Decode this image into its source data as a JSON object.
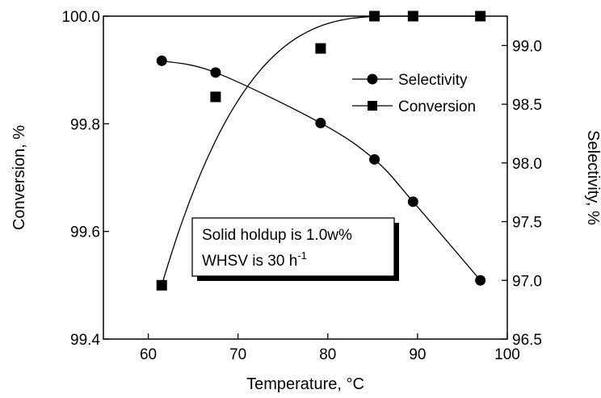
{
  "chart_data": {
    "type": "line",
    "xlabel": "Temperature, °C",
    "ylabel_left": "Conversion, %",
    "ylabel_right": "Selectivity, %",
    "xlim": [
      55,
      100
    ],
    "ylim_left": [
      99.4,
      100.0
    ],
    "ylim_right": [
      96.5,
      99.25
    ],
    "x_ticks": [
      60,
      70,
      80,
      90,
      100
    ],
    "y_ticks_left": [
      99.4,
      99.6,
      99.8,
      100.0
    ],
    "y_tick_labels_left": [
      "99.4",
      "99.6",
      "99.8",
      "100.0"
    ],
    "y_ticks_right": [
      96.5,
      97.0,
      97.5,
      98.0,
      98.5,
      99.0
    ],
    "y_tick_labels_right": [
      "96.5",
      "97.0",
      "97.5",
      "98.0",
      "98.5",
      "99.0"
    ],
    "grid": false,
    "legend_position": "upper-right",
    "series": [
      {
        "name": "Selectivity",
        "axis": "right",
        "marker": "circle",
        "x": [
          61.5,
          67.5,
          79.2,
          85.2,
          89.5,
          97.0
        ],
        "y": [
          98.87,
          98.77,
          98.34,
          98.03,
          97.67,
          97.0
        ]
      },
      {
        "name": "Conversion",
        "axis": "left",
        "marker": "square",
        "x": [
          61.5,
          67.5,
          79.2,
          85.2,
          89.5,
          97.0
        ],
        "y": [
          99.5,
          99.85,
          99.94,
          100.0,
          100.0,
          100.0
        ]
      }
    ],
    "annotation": {
      "line1": "Solid holdup is 1.0w%",
      "line2_text": "WHSV is 30 h",
      "line2_sup": "-1"
    }
  }
}
